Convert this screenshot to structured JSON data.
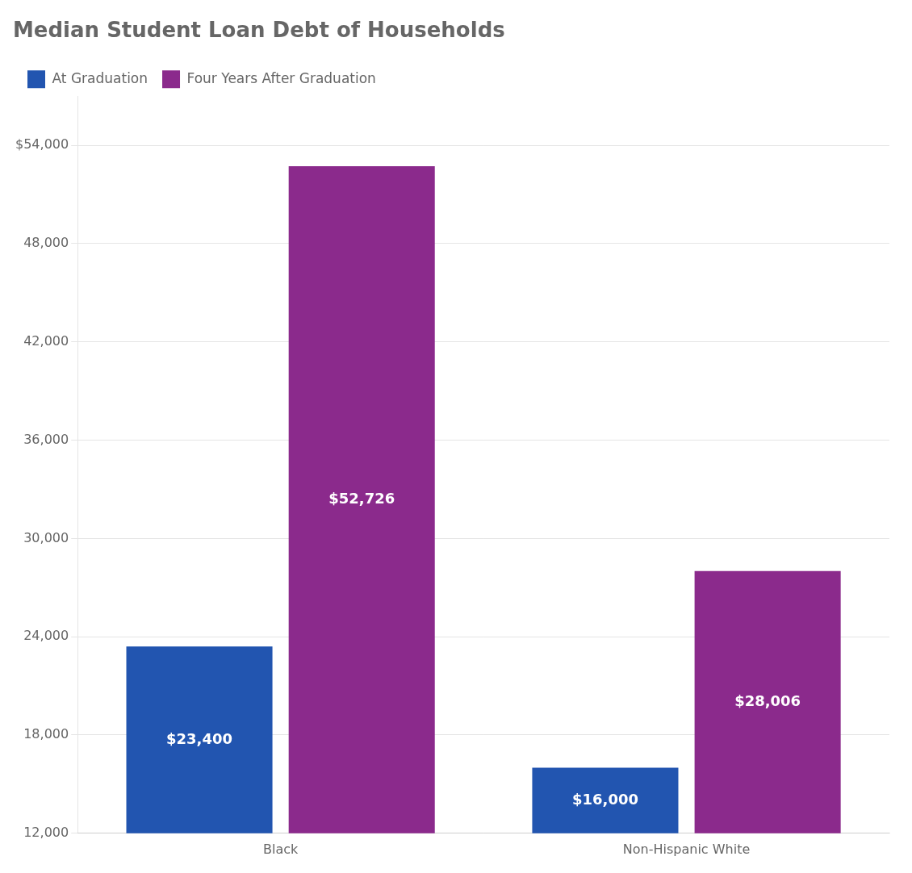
{
  "chart_data": {
    "type": "bar",
    "title": "Median Student Loan Debt of Households",
    "categories": [
      "Black",
      "Non-Hispanic White"
    ],
    "series": [
      {
        "name": "At Graduation",
        "color": "#2255b0",
        "values": [
          23400,
          16000
        ],
        "value_labels": [
          "$23,400",
          "$16,000"
        ]
      },
      {
        "name": "Four Years After Graduation",
        "color": "#8B2A8C",
        "values": [
          52726,
          28006
        ],
        "value_labels": [
          "$52,726",
          "$28,006"
        ]
      }
    ],
    "ylim": [
      12000,
      57000
    ],
    "yticks": [
      {
        "value": 12000,
        "label": "12,000"
      },
      {
        "value": 18000,
        "label": "18,000"
      },
      {
        "value": 24000,
        "label": "24,000"
      },
      {
        "value": 30000,
        "label": "30,000"
      },
      {
        "value": 36000,
        "label": "36,000"
      },
      {
        "value": 42000,
        "label": "42,000"
      },
      {
        "value": 48000,
        "label": "48,000"
      },
      {
        "value": 54000,
        "label": "$54,000"
      }
    ],
    "grid": true,
    "legend": "upper left",
    "data_labels": true
  }
}
